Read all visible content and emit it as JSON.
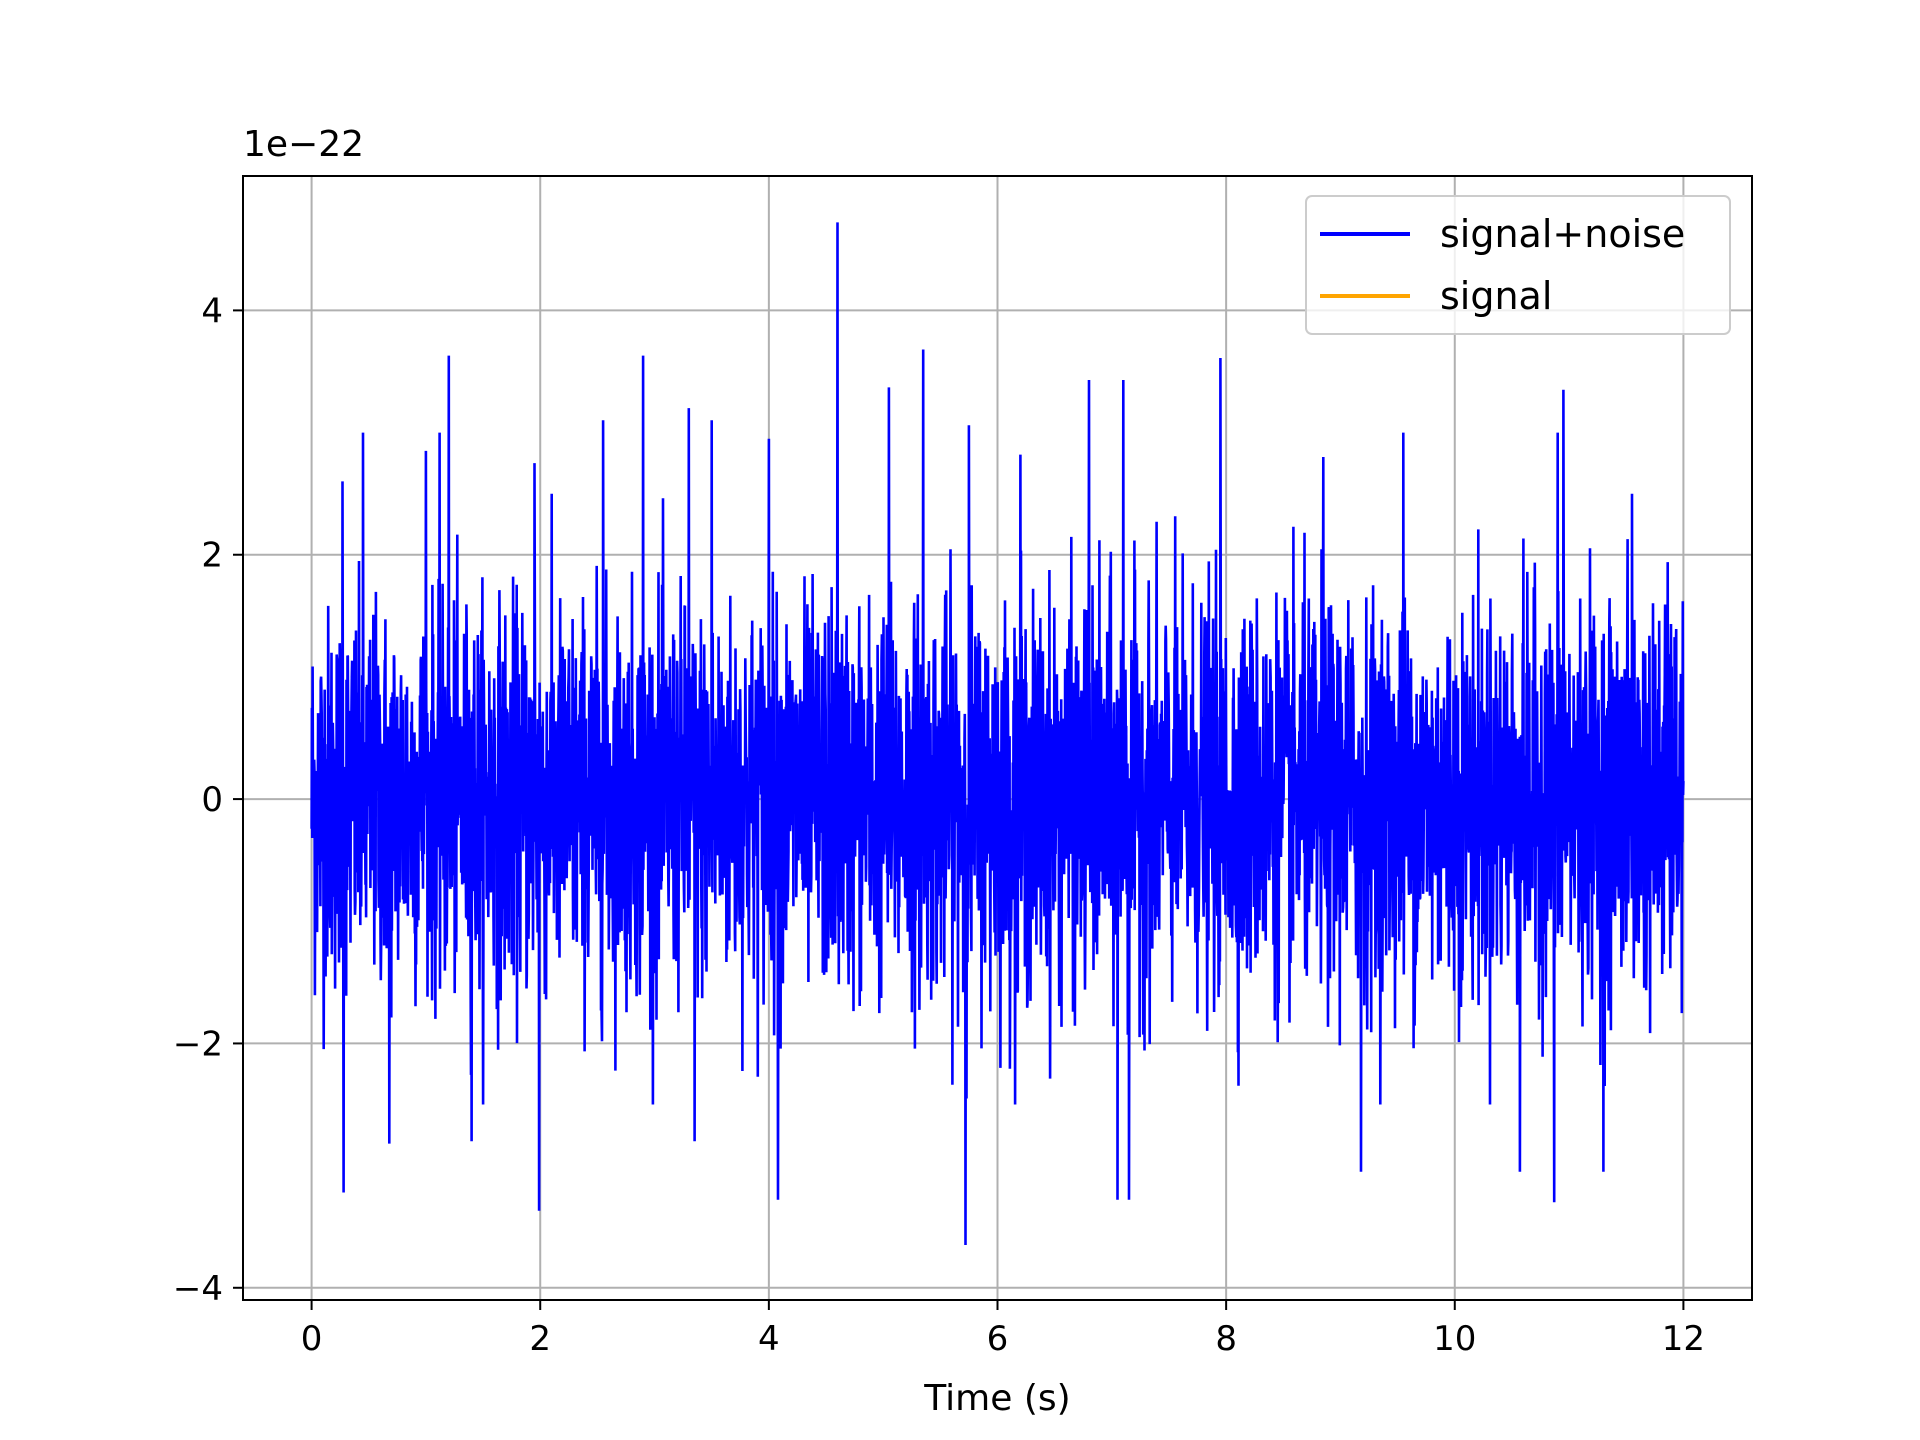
{
  "chart_data": {
    "type": "line",
    "title": "",
    "xlabel": "Time (s)",
    "ylabel": "",
    "y_offset_label": "1e−22",
    "xlim": [
      -0.6,
      12.6
    ],
    "ylim": [
      -4.1,
      5.1
    ],
    "x_ticks": [
      0,
      2,
      4,
      6,
      8,
      10,
      12
    ],
    "x_tick_labels": [
      "0",
      "2",
      "4",
      "6",
      "8",
      "10",
      "12"
    ],
    "y_ticks": [
      -4,
      -2,
      0,
      2,
      4
    ],
    "y_tick_labels": [
      "−4",
      "−2",
      "0",
      "2",
      "4"
    ],
    "grid": true,
    "legend_position": "top-right",
    "x_range": [
      0,
      12
    ],
    "series": [
      {
        "name": "signal+noise",
        "color": "#0000ff",
        "description_values": "dense noise, typical range about -2 to 2, envelope peaks",
        "peaks": [
          {
            "x": 0.27,
            "y": 2.6
          },
          {
            "x": 0.45,
            "y": 3.0
          },
          {
            "x": 1.0,
            "y": 2.85
          },
          {
            "x": 1.12,
            "y": 3.0
          },
          {
            "x": 1.2,
            "y": 3.63
          },
          {
            "x": 1.4,
            "y": 3.57
          },
          {
            "x": 1.95,
            "y": 2.75
          },
          {
            "x": 2.55,
            "y": 3.1
          },
          {
            "x": 2.9,
            "y": 3.63
          },
          {
            "x": 3.3,
            "y": 3.2
          },
          {
            "x": 3.5,
            "y": 3.1
          },
          {
            "x": 4.0,
            "y": 2.95
          },
          {
            "x": 4.6,
            "y": 4.72
          },
          {
            "x": 5.05,
            "y": 3.37
          },
          {
            "x": 5.35,
            "y": 3.68
          },
          {
            "x": 5.75,
            "y": 3.06
          },
          {
            "x": 6.2,
            "y": 2.82
          },
          {
            "x": 6.8,
            "y": 3.43
          },
          {
            "x": 7.1,
            "y": 3.43
          },
          {
            "x": 7.95,
            "y": 3.61
          },
          {
            "x": 8.85,
            "y": 2.8
          },
          {
            "x": 9.55,
            "y": 3.0
          },
          {
            "x": 10.9,
            "y": 3.0
          },
          {
            "x": 10.95,
            "y": 3.35
          },
          {
            "x": 11.55,
            "y": 2.5
          }
        ],
        "troughs": [
          {
            "x": 0.28,
            "y": -3.22
          },
          {
            "x": 0.68,
            "y": -2.82
          },
          {
            "x": 1.4,
            "y": -2.8
          },
          {
            "x": 1.99,
            "y": -3.37
          },
          {
            "x": 3.35,
            "y": -2.8
          },
          {
            "x": 4.08,
            "y": -3.28
          },
          {
            "x": 5.72,
            "y": -3.65
          },
          {
            "x": 7.05,
            "y": -3.28
          },
          {
            "x": 7.15,
            "y": -3.28
          },
          {
            "x": 9.18,
            "y": -3.05
          },
          {
            "x": 10.57,
            "y": -3.05
          },
          {
            "x": 10.87,
            "y": -3.3
          },
          {
            "x": 11.3,
            "y": -3.05
          }
        ]
      },
      {
        "name": "signal",
        "color": "#ffa500"
      }
    ]
  }
}
